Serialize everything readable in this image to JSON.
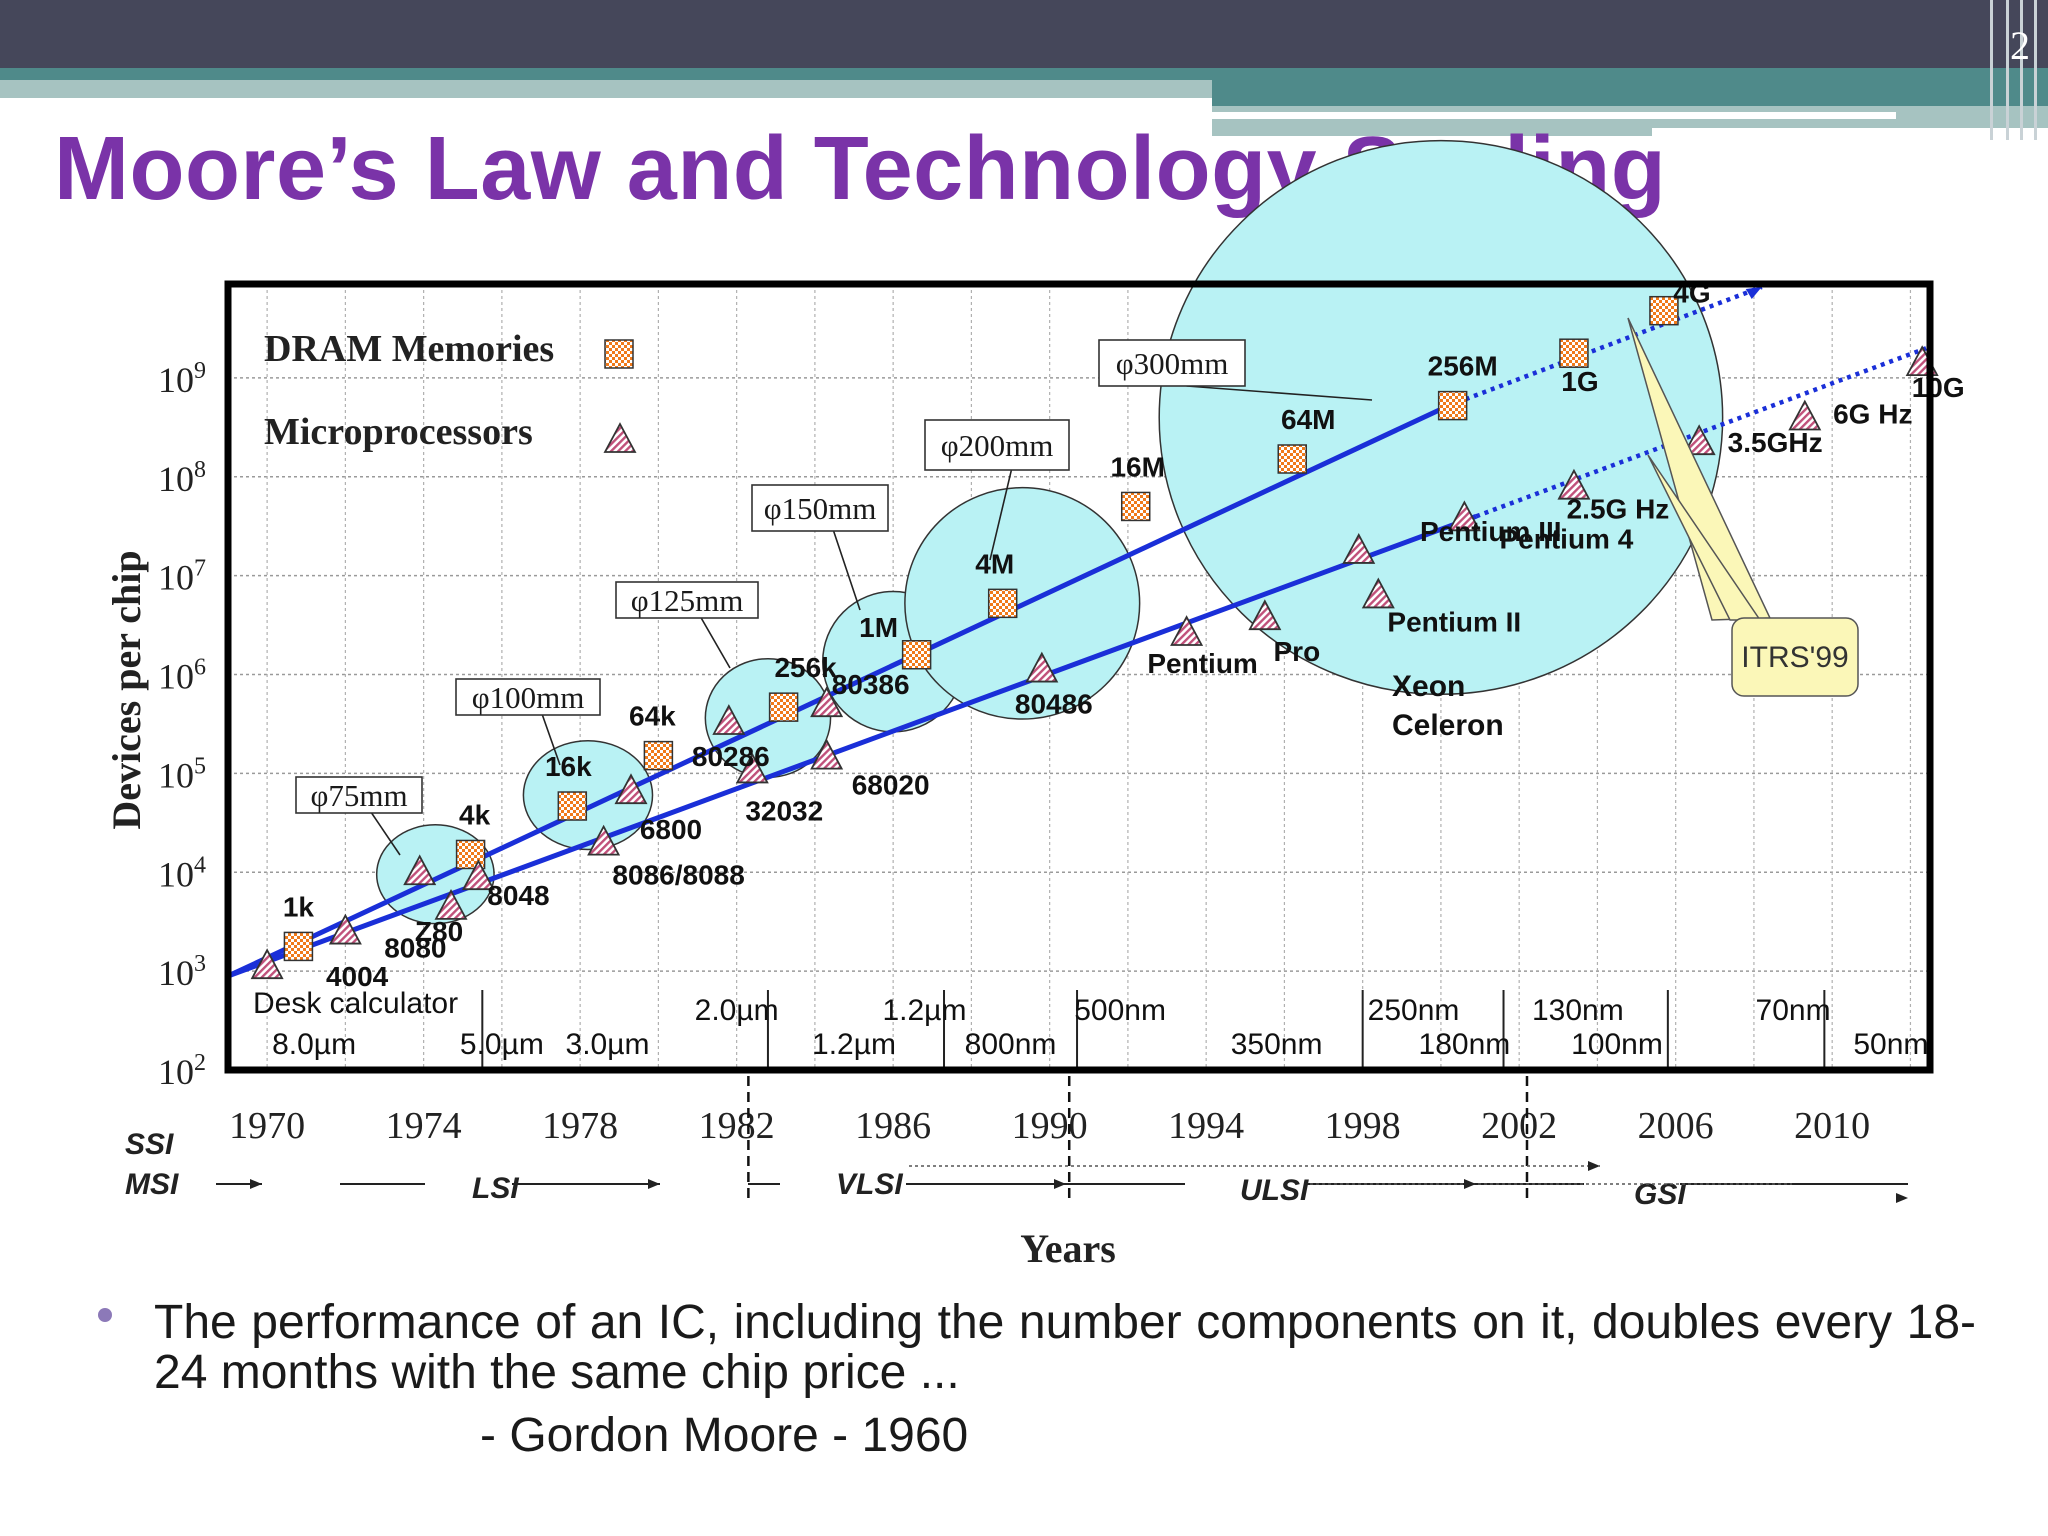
{
  "slide": {
    "number": "2",
    "title": "Moore’s Law and Technology Scaling",
    "bullet": "The performance of an IC, including the number components on it, doubles every 18-24 months with the same chip price ...",
    "attribution": "- Gordon Moore - 1960"
  },
  "chart_data": {
    "type": "scatter",
    "xlabel": "Years",
    "ylabel": "Devices per chip",
    "x_ticks": [
      "1970",
      "1974",
      "1978",
      "1982",
      "1986",
      "1990",
      "1994",
      "1998",
      "2002",
      "2006",
      "2010"
    ],
    "y_ticks": [
      {
        "base": "10",
        "exp": "2"
      },
      {
        "base": "10",
        "exp": "3"
      },
      {
        "base": "10",
        "exp": "4"
      },
      {
        "base": "10",
        "exp": "5"
      },
      {
        "base": "10",
        "exp": "6"
      },
      {
        "base": "10",
        "exp": "7"
      },
      {
        "base": "10",
        "exp": "8"
      },
      {
        "base": "10",
        "exp": "9"
      }
    ],
    "xlim": [
      1969,
      2012.5
    ],
    "ylim": [
      2,
      9.95
    ],
    "y_scale": "log10",
    "grid": true,
    "legend": {
      "position": "top-left",
      "entries": [
        "DRAM Memories",
        "Microprocessors"
      ]
    },
    "series": [
      {
        "name": "DRAM Memories",
        "marker": "checkered-square",
        "points": [
          {
            "x": 1970.8,
            "y": 3.25,
            "label": "1k"
          },
          {
            "x": 1975.2,
            "y": 4.18,
            "label": "4k"
          },
          {
            "x": 1977.8,
            "y": 4.67,
            "label": "16k"
          },
          {
            "x": 1980.0,
            "y": 5.18,
            "label": "64k"
          },
          {
            "x": 1983.2,
            "y": 5.67,
            "label": "256k"
          },
          {
            "x": 1986.6,
            "y": 6.2,
            "label": "1M"
          },
          {
            "x": 1988.8,
            "y": 6.72,
            "label": "4M"
          },
          {
            "x": 1992.2,
            "y": 7.7,
            "label": "16M"
          },
          {
            "x": 1996.2,
            "y": 8.18,
            "label": "64M"
          },
          {
            "x": 2000.3,
            "y": 8.72,
            "label": "256M"
          },
          {
            "x": 2003.4,
            "y": 9.25,
            "label": "1G"
          },
          {
            "x": 2005.7,
            "y": 9.68,
            "label": "4G"
          }
        ]
      },
      {
        "name": "Microprocessors",
        "marker": "hatched-triangle",
        "points": [
          {
            "x": 1970.0,
            "y": 3.05,
            "label": "4004"
          },
          {
            "x": 1972.0,
            "y": 3.4,
            "label": "8080"
          },
          {
            "x": 1974.7,
            "y": 3.65,
            "label": "Z80"
          },
          {
            "x": 1975.4,
            "y": 3.95,
            "label": "8048"
          },
          {
            "x": 1973.9,
            "y": 4.0,
            "label": ""
          },
          {
            "x": 1978.6,
            "y": 4.3,
            "label": "8086/8088"
          },
          {
            "x": 1979.3,
            "y": 4.82,
            "label": "6800"
          },
          {
            "x": 1982.4,
            "y": 5.03,
            "label": "32032"
          },
          {
            "x": 1981.8,
            "y": 5.52,
            "label": "80286"
          },
          {
            "x": 1984.3,
            "y": 5.17,
            "label": "68020"
          },
          {
            "x": 1984.3,
            "y": 5.7,
            "label": "80386"
          },
          {
            "x": 1989.8,
            "y": 6.05,
            "label": "80486"
          },
          {
            "x": 1993.5,
            "y": 6.42,
            "label": "Pentium"
          },
          {
            "x": 1995.5,
            "y": 6.58,
            "label": "Pro"
          },
          {
            "x": 1998.4,
            "y": 6.8,
            "label": "Pentium II"
          },
          {
            "x": 1997.9,
            "y": 7.25,
            "label": "Pentium III"
          },
          {
            "x": 2000.6,
            "y": 7.58,
            "label": "Pentium 4"
          },
          {
            "x": 2003.4,
            "y": 7.9,
            "label": "2.5G Hz"
          },
          {
            "x": 2006.6,
            "y": 8.35,
            "label": "3.5GHz"
          },
          {
            "x": 2009.3,
            "y": 8.6,
            "label": "6G Hz"
          },
          {
            "x": 2012.3,
            "y": 9.15,
            "label": "10G"
          }
        ]
      }
    ],
    "extra_labels": {
      "desk_calculator": "Desk calculator",
      "xeon": "Xeon",
      "celeron": "Celeron",
      "itrs": "ITRS'99"
    },
    "trend_lines": [
      {
        "name": "DRAM trend",
        "from": [
          1969,
          2.95
        ],
        "to": [
          2000.2,
          8.72
        ],
        "dotted_to": [
          2008.2,
          9.92
        ]
      },
      {
        "name": "Microprocessor trend",
        "from": [
          1969,
          2.95
        ],
        "to": [
          2000.9,
          7.6
        ],
        "dotted_to": [
          2012.4,
          9.3
        ]
      }
    ],
    "wafer_sizes": [
      {
        "label": "φ75mm",
        "cx": 1974.3,
        "cy": 3.98,
        "rx": 1.5,
        "ry": 0.5
      },
      {
        "label": "φ100mm",
        "cx": 1978.2,
        "cy": 4.78,
        "rx": 1.65,
        "ry": 0.55
      },
      {
        "label": "φ125mm",
        "cx": 1982.8,
        "cy": 5.56,
        "rx": 1.6,
        "ry": 0.6
      },
      {
        "label": "φ150mm",
        "cx": 1986.0,
        "cy": 6.13,
        "rx": 1.8,
        "ry": 0.71
      },
      {
        "label": "φ200mm",
        "cx": 1989.3,
        "cy": 6.72,
        "rx": 3.0,
        "ry": 1.17
      },
      {
        "label": "φ300mm",
        "cx": 2000.0,
        "cy": 8.6,
        "rx": 7.2,
        "ry": 2.8
      }
    ],
    "feature_sizes_upper": [
      {
        "x": 1982.0,
        "label": "2.0µm"
      },
      {
        "x": 1986.8,
        "label": "1.2µm"
      },
      {
        "x": 1991.8,
        "label": "500nm"
      },
      {
        "x": 1999.3,
        "label": "250nm"
      },
      {
        "x": 2003.5,
        "label": "130nm"
      },
      {
        "x": 2009.0,
        "label": "70nm"
      }
    ],
    "feature_sizes_lower": [
      {
        "x": 1971.2,
        "label": "8.0µm"
      },
      {
        "x": 1976.0,
        "label": "5.0µm"
      },
      {
        "x": 1978.7,
        "label": "3.0µm"
      },
      {
        "x": 1985.0,
        "label": "1.2µm"
      },
      {
        "x": 1989.0,
        "label": "800nm"
      },
      {
        "x": 1995.8,
        "label": "350nm"
      },
      {
        "x": 2000.6,
        "label": "180nm"
      },
      {
        "x": 2004.5,
        "label": "100nm"
      },
      {
        "x": 2011.5,
        "label": "50nm"
      }
    ],
    "integration_levels": [
      "SSI",
      "MSI",
      "LSI",
      "VLSI",
      "ULSI",
      "GSI"
    ]
  },
  "colors": {
    "title": "#7a33a8",
    "trend": "#1a2fd8",
    "wafer": "#b9f2f4",
    "dram_marker": "#f07a1a",
    "cpu_marker": "#c0507a",
    "itrs_bubble": "#fbf7b8"
  }
}
